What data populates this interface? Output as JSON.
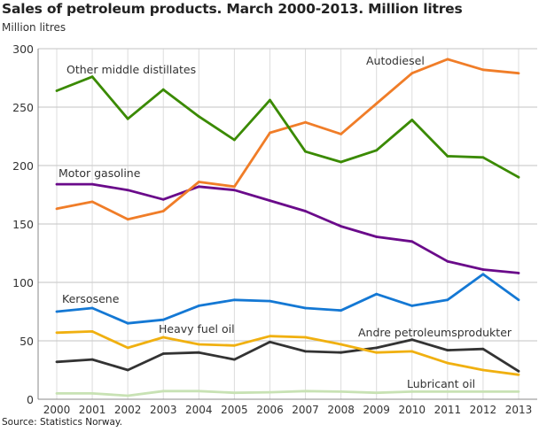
{
  "chart_data": {
    "type": "line",
    "title": "Sales of petroleum products. March 2000-2013. Million litres",
    "ylabel": "Million litres",
    "xlabel": "",
    "source": "Source: Statistics Norway.",
    "ylim": [
      0,
      300
    ],
    "yticks": [
      0,
      50,
      100,
      150,
      200,
      250,
      300
    ],
    "grid": true,
    "x": [
      "2000",
      "2001",
      "2002",
      "2003",
      "2004",
      "2005",
      "2006",
      "2007",
      "2008",
      "2009",
      "2010",
      "2011",
      "2012",
      "2013"
    ],
    "series": [
      {
        "name": "Other middle distillates",
        "color": "#3a8a00",
        "values": [
          264,
          276,
          240,
          265,
          242,
          222,
          256,
          212,
          203,
          213,
          239,
          208,
          207,
          190
        ]
      },
      {
        "name": "Autodiesel",
        "color": "#f07d28",
        "values": [
          163,
          169,
          154,
          161,
          186,
          182,
          228,
          237,
          227,
          253,
          279,
          291,
          282,
          279
        ]
      },
      {
        "name": "Motor gasoline",
        "color": "#6a0a8a",
        "values": [
          184,
          184,
          179,
          171,
          182,
          179,
          170,
          161,
          148,
          139,
          135,
          118,
          111,
          108
        ]
      },
      {
        "name": "Kersosene",
        "color": "#1478d4",
        "values": [
          75,
          78,
          65,
          68,
          80,
          85,
          84,
          78,
          76,
          90,
          80,
          85,
          107,
          85
        ]
      },
      {
        "name": "Heavy fuel oil",
        "color": "#f0b010",
        "values": [
          57,
          58,
          44,
          53,
          47,
          46,
          54,
          53,
          47,
          40,
          41,
          31,
          25,
          21
        ]
      },
      {
        "name": "Andre petroleumsprodukter",
        "color": "#333333",
        "values": [
          32,
          34,
          25,
          39,
          40,
          34,
          49,
          41,
          40,
          44,
          51,
          42,
          43,
          24
        ]
      },
      {
        "name": "Lubricant oil",
        "color": "#c8e2b4",
        "values": [
          5,
          5,
          3,
          7,
          7,
          5.5,
          6,
          7,
          6.5,
          5.5,
          6.5,
          6.5,
          6.5,
          6.5
        ]
      }
    ]
  }
}
